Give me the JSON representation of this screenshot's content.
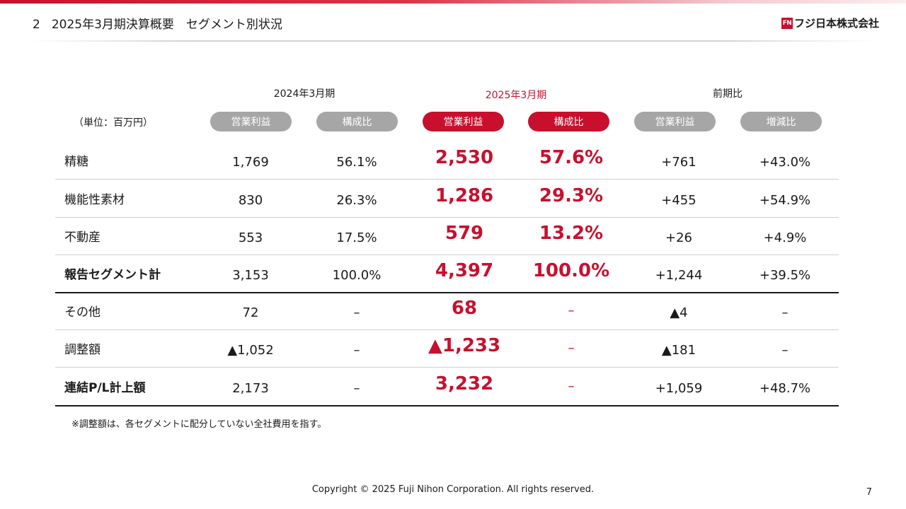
{
  "header": {
    "section_number": "2",
    "title": "2025年3月期決算概要　セグメント別状況",
    "logo_mark": "FN",
    "logo_text": "フジ日本株式会社"
  },
  "table": {
    "unit": "（単位：百万円）",
    "periods": [
      "2024年3月期",
      "2025年3月期",
      "前期比"
    ],
    "column_headers": [
      "営業利益",
      "構成比",
      "営業利益",
      "構成比",
      "営業利益",
      "増減比"
    ],
    "rows": [
      {
        "label": "精糖",
        "values": [
          "1,769",
          "56.1%",
          "2,530",
          "57.6%",
          "+761",
          "+43.0%"
        ]
      },
      {
        "label": "機能性素材",
        "values": [
          "830",
          "26.3%",
          "1,286",
          "29.3%",
          "+455",
          "+54.9%"
        ]
      },
      {
        "label": "不動産",
        "values": [
          "553",
          "17.5%",
          "579",
          "13.2%",
          "+26",
          "+4.9%"
        ]
      },
      {
        "label": "報告セグメント計",
        "values": [
          "3,153",
          "100.0%",
          "4,397",
          "100.0%",
          "+1,244",
          "+39.5%"
        ]
      },
      {
        "label": "その他",
        "values": [
          "72",
          "–",
          "68",
          "–",
          "▲4",
          "–"
        ]
      },
      {
        "label": "調整額",
        "values": [
          "▲1,052",
          "–",
          "▲1,233",
          "–",
          "▲181",
          "–"
        ]
      },
      {
        "label": "連結P/L計上額",
        "values": [
          "2,173",
          "–",
          "3,232",
          "–",
          "+1,059",
          "+48.7%"
        ]
      }
    ],
    "note": "※調整額は、各セグメントに配分していない全社費用を指す。"
  },
  "footer": {
    "copyright": "Copyright © 2025 Fuji Nihon Corporation.  All rights reserved.",
    "page_number": "7"
  },
  "colors": {
    "accent_red": "#c8102e",
    "pill_gray": "#a6a6a6"
  }
}
